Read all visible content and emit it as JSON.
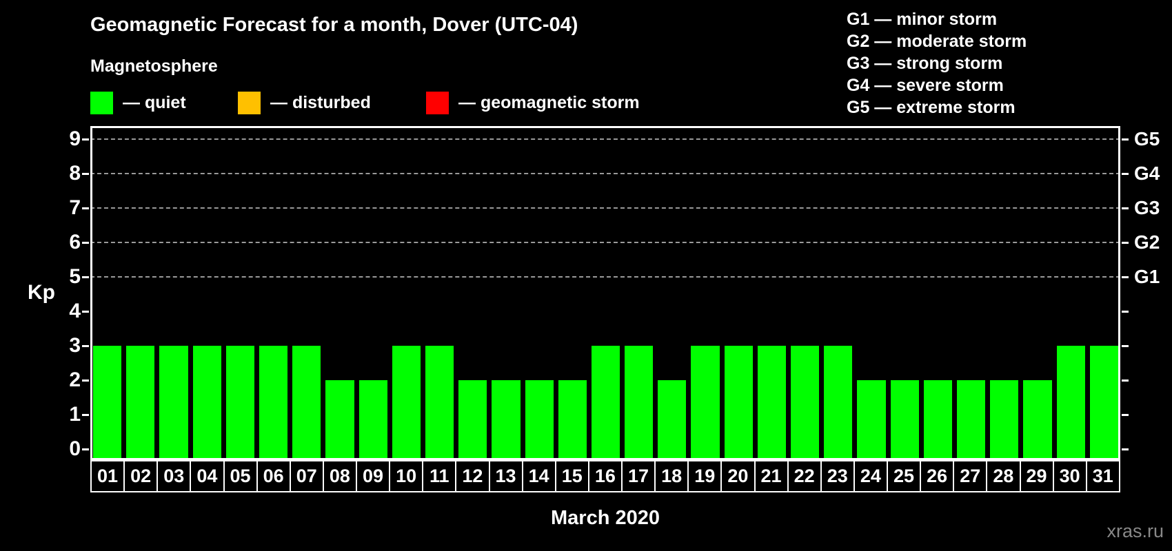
{
  "title": "Geomagnetic Forecast for a month, Dover (UTC-04)",
  "subtitle": "Magnetosphere",
  "legend": {
    "items": [
      {
        "label": "quiet",
        "color": "#00ff00"
      },
      {
        "label": "disturbed",
        "color": "#ffc000"
      },
      {
        "label": "geomagnetic storm",
        "color": "#ff0000"
      }
    ]
  },
  "g_scale": [
    {
      "code": "G1",
      "label": "minor storm"
    },
    {
      "code": "G2",
      "label": "moderate storm"
    },
    {
      "code": "G3",
      "label": "strong storm"
    },
    {
      "code": "G4",
      "label": "severe storm"
    },
    {
      "code": "G5",
      "label": "extreme storm"
    }
  ],
  "chart_data": {
    "type": "bar",
    "title": "Geomagnetic Forecast for a month, Dover (UTC-04)",
    "subtitle": "Magnetosphere",
    "xlabel": "March 2020",
    "ylabel": "Kp",
    "ylim": [
      0,
      9
    ],
    "yticks": [
      0,
      1,
      2,
      3,
      4,
      5,
      6,
      7,
      8,
      9
    ],
    "grid": "horizontal dashed lines at Kp 5-9 only",
    "legend_position": "top-left",
    "bar_color": "#00ff00",
    "categories": [
      "01",
      "02",
      "03",
      "04",
      "05",
      "06",
      "07",
      "08",
      "09",
      "10",
      "11",
      "12",
      "13",
      "14",
      "15",
      "16",
      "17",
      "18",
      "19",
      "20",
      "21",
      "22",
      "23",
      "24",
      "25",
      "26",
      "27",
      "28",
      "29",
      "30",
      "31"
    ],
    "values": [
      3,
      3,
      3,
      3,
      3,
      3,
      3,
      2,
      2,
      3,
      3,
      2,
      2,
      2,
      2,
      3,
      3,
      2,
      3,
      3,
      3,
      3,
      3,
      2,
      2,
      2,
      2,
      2,
      2,
      3,
      3
    ],
    "right_axis": [
      {
        "kp": 5,
        "label": "G1"
      },
      {
        "kp": 6,
        "label": "G2"
      },
      {
        "kp": 7,
        "label": "G3"
      },
      {
        "kp": 8,
        "label": "G4"
      },
      {
        "kp": 9,
        "label": "G5"
      }
    ]
  },
  "watermark": "xras.ru"
}
